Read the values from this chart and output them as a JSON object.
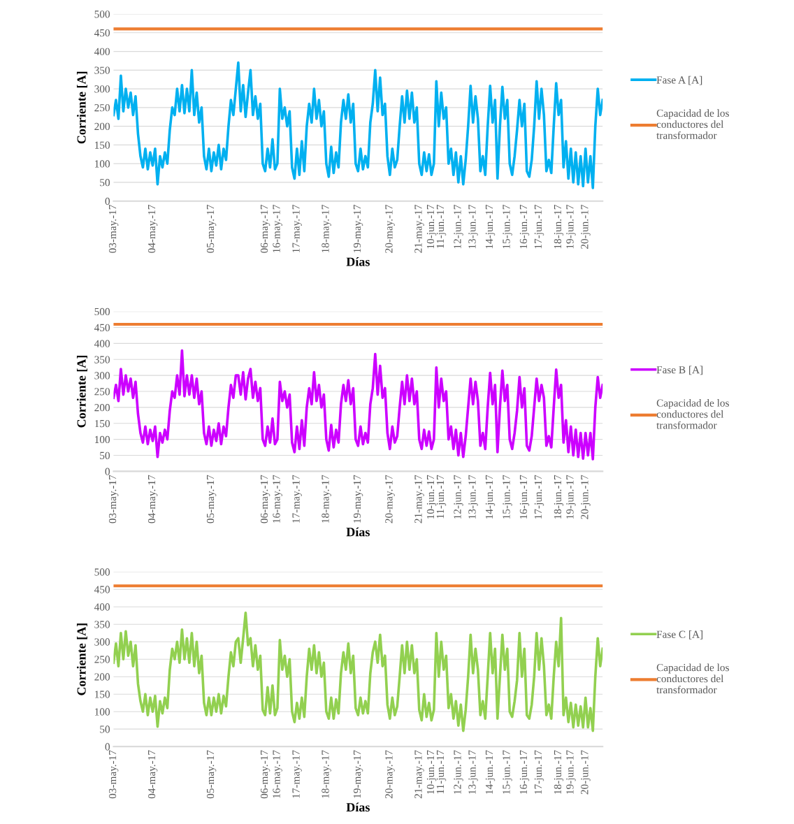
{
  "chart_data": [
    {
      "type": "line",
      "xlabel": "Días",
      "ylabel": "Corriente [A]",
      "ylim": [
        0,
        500
      ],
      "yticks": [
        0,
        50,
        100,
        150,
        200,
        250,
        300,
        350,
        400,
        450,
        500
      ],
      "categories": [
        "03-may.-17",
        null,
        null,
        null,
        null,
        null,
        null,
        null,
        null,
        null,
        null,
        null,
        null,
        null,
        null,
        null,
        "04-may.-17",
        null,
        null,
        null,
        null,
        null,
        null,
        null,
        null,
        null,
        null,
        null,
        null,
        null,
        null,
        null,
        null,
        null,
        null,
        null,
        null,
        null,
        null,
        null,
        "05-may.-17",
        null,
        null,
        null,
        null,
        null,
        null,
        null,
        null,
        null,
        null,
        null,
        null,
        null,
        null,
        null,
        null,
        null,
        null,
        null,
        null,
        null,
        "06-may.-17",
        null,
        null,
        null,
        null,
        "16-may.-17",
        null,
        null,
        null,
        null,
        null,
        null,
        null,
        "17-may.-17",
        null,
        null,
        null,
        null,
        null,
        null,
        null,
        null,
        null,
        null,
        null,
        "18-may.-17",
        null,
        null,
        null,
        null,
        null,
        null,
        null,
        null,
        null,
        null,
        null,
        null,
        "19-may.-17",
        null,
        null,
        null,
        null,
        null,
        null,
        null,
        null,
        null,
        null,
        null,
        null,
        "20-may.-17",
        null,
        null,
        null,
        null,
        null,
        null,
        null,
        null,
        null,
        null,
        null,
        "21-may.-17",
        null,
        null,
        null,
        null,
        "10-jun.-17",
        null,
        null,
        null,
        "11-jun.-17",
        null,
        null,
        null,
        null,
        null,
        null,
        "12-jun.-17",
        null,
        null,
        null,
        null,
        null,
        "13-jun.-17",
        null,
        null,
        null,
        null,
        null,
        null,
        "14-jun.-17",
        null,
        null,
        null,
        null,
        null,
        null,
        "15-jun.-17",
        null,
        null,
        null,
        null,
        null,
        null,
        "16-jun.-17",
        null,
        null,
        null,
        null,
        null,
        "17-jun.-17",
        null,
        null,
        null,
        null,
        null,
        null,
        null,
        "18-jun.-17",
        null,
        null,
        null,
        null,
        "19-jun.-17",
        null,
        null,
        null,
        null,
        null,
        "20-jun.-17",
        null,
        null,
        null,
        null,
        null,
        null,
        null
      ],
      "grid": "y",
      "legend": "right",
      "line_style": "solid",
      "ref_lines": [
        {
          "axis": "y",
          "value": 460,
          "label": "Capacidad de los conductores del transformador",
          "color": "#ed7d31"
        }
      ],
      "series": [
        {
          "name": "Fase A [A]",
          "color": "#00b0f0",
          "values": [
            230,
            270,
            220,
            335,
            240,
            300,
            250,
            290,
            230,
            280,
            180,
            120,
            90,
            140,
            85,
            130,
            95,
            140,
            45,
            120,
            90,
            130,
            100,
            190,
            250,
            230,
            300,
            240,
            310,
            235,
            300,
            240,
            350,
            230,
            290,
            210,
            250,
            120,
            85,
            140,
            80,
            130,
            95,
            150,
            85,
            140,
            110,
            200,
            270,
            230,
            300,
            370,
            240,
            310,
            225,
            290,
            350,
            230,
            280,
            220,
            260,
            100,
            80,
            140,
            90,
            165,
            85,
            100,
            300,
            220,
            250,
            200,
            240,
            90,
            60,
            140,
            70,
            160,
            80,
            200,
            260,
            210,
            300,
            220,
            270,
            200,
            240,
            100,
            65,
            145,
            75,
            130,
            90,
            210,
            270,
            220,
            285,
            210,
            260,
            100,
            80,
            140,
            85,
            120,
            90,
            210,
            260,
            350,
            240,
            330,
            230,
            260,
            120,
            70,
            140,
            90,
            110,
            200,
            280,
            210,
            295,
            220,
            290,
            210,
            250,
            100,
            70,
            130,
            80,
            125,
            70,
            100,
            320,
            200,
            290,
            220,
            250,
            100,
            140,
            70,
            130,
            50,
            120,
            45,
            110,
            200,
            308,
            210,
            280,
            220,
            80,
            120,
            70,
            200,
            308,
            210,
            270,
            60,
            200,
            305,
            220,
            270,
            100,
            70,
            120,
            190,
            270,
            200,
            260,
            80,
            65,
            110,
            200,
            320,
            220,
            300,
            230,
            80,
            110,
            75,
            200,
            315,
            230,
            270,
            90,
            160,
            60,
            140,
            50,
            130,
            45,
            120,
            40,
            140,
            50,
            120,
            35,
            200,
            300,
            230,
            270
          ]
        }
      ]
    },
    {
      "type": "line",
      "xlabel": "Días",
      "ylabel": "Corriente [A]",
      "ylim": [
        0,
        500
      ],
      "yticks": [
        0,
        50,
        100,
        150,
        200,
        250,
        300,
        350,
        400,
        450,
        500
      ],
      "categories": [
        "03-may.-17",
        null,
        null,
        null,
        null,
        null,
        null,
        null,
        null,
        null,
        null,
        null,
        null,
        null,
        null,
        null,
        "04-may.-17",
        null,
        null,
        null,
        null,
        null,
        null,
        null,
        null,
        null,
        null,
        null,
        null,
        null,
        null,
        null,
        null,
        null,
        null,
        null,
        null,
        null,
        null,
        null,
        "05-may.-17",
        null,
        null,
        null,
        null,
        null,
        null,
        null,
        null,
        null,
        null,
        null,
        null,
        null,
        null,
        null,
        null,
        null,
        null,
        null,
        null,
        null,
        "06-may.-17",
        null,
        null,
        null,
        null,
        "16-may.-17",
        null,
        null,
        null,
        null,
        null,
        null,
        null,
        "17-may.-17",
        null,
        null,
        null,
        null,
        null,
        null,
        null,
        null,
        null,
        null,
        null,
        "18-may.-17",
        null,
        null,
        null,
        null,
        null,
        null,
        null,
        null,
        null,
        null,
        null,
        null,
        "19-may.-17",
        null,
        null,
        null,
        null,
        null,
        null,
        null,
        null,
        null,
        null,
        null,
        null,
        "20-may.-17",
        null,
        null,
        null,
        null,
        null,
        null,
        null,
        null,
        null,
        null,
        null,
        "21-may.-17",
        null,
        null,
        null,
        null,
        "10-jun.-17",
        null,
        null,
        null,
        "11-jun.-17",
        null,
        null,
        null,
        null,
        null,
        null,
        "12-jun.-17",
        null,
        null,
        null,
        null,
        null,
        "13-jun.-17",
        null,
        null,
        null,
        null,
        null,
        null,
        "14-jun.-17",
        null,
        null,
        null,
        null,
        null,
        null,
        "15-jun.-17",
        null,
        null,
        null,
        null,
        null,
        null,
        "16-jun.-17",
        null,
        null,
        null,
        null,
        null,
        "17-jun.-17",
        null,
        null,
        null,
        null,
        null,
        null,
        null,
        "18-jun.-17",
        null,
        null,
        null,
        null,
        "19-jun.-17",
        null,
        null,
        null,
        null,
        null,
        "20-jun.-17",
        null,
        null,
        null,
        null,
        null,
        null,
        null
      ],
      "grid": "y",
      "legend": "right",
      "line_style": "solid",
      "ref_lines": [
        {
          "axis": "y",
          "value": 460,
          "label": "Capacidad de los conductores del transformador",
          "color": "#ed7d31"
        }
      ],
      "series": [
        {
          "name": "Fase B [A]",
          "color": "#cc00ff",
          "values": [
            230,
            270,
            220,
            320,
            240,
            300,
            250,
            290,
            230,
            280,
            180,
            120,
            90,
            140,
            85,
            130,
            95,
            140,
            45,
            120,
            90,
            130,
            100,
            190,
            250,
            230,
            300,
            240,
            378,
            235,
            300,
            240,
            300,
            230,
            290,
            210,
            250,
            120,
            85,
            140,
            80,
            130,
            95,
            150,
            85,
            140,
            110,
            200,
            270,
            230,
            300,
            300,
            240,
            310,
            225,
            290,
            320,
            230,
            280,
            220,
            260,
            100,
            80,
            140,
            90,
            165,
            85,
            100,
            280,
            220,
            250,
            200,
            240,
            90,
            60,
            140,
            70,
            160,
            80,
            200,
            260,
            210,
            310,
            220,
            270,
            200,
            240,
            100,
            65,
            145,
            75,
            130,
            90,
            210,
            270,
            220,
            285,
            210,
            260,
            100,
            80,
            140,
            85,
            120,
            90,
            210,
            260,
            367,
            240,
            330,
            230,
            260,
            120,
            70,
            140,
            90,
            110,
            200,
            280,
            210,
            300,
            220,
            290,
            210,
            250,
            100,
            70,
            130,
            80,
            125,
            70,
            100,
            325,
            200,
            290,
            220,
            250,
            100,
            140,
            70,
            130,
            50,
            120,
            45,
            110,
            200,
            290,
            210,
            280,
            220,
            80,
            120,
            70,
            200,
            308,
            210,
            270,
            60,
            200,
            315,
            220,
            270,
            100,
            70,
            120,
            190,
            295,
            200,
            260,
            80,
            65,
            110,
            200,
            290,
            220,
            270,
            230,
            80,
            110,
            75,
            200,
            318,
            230,
            270,
            90,
            160,
            60,
            140,
            50,
            130,
            45,
            120,
            40,
            120,
            50,
            120,
            38,
            200,
            295,
            230,
            270
          ]
        }
      ]
    },
    {
      "type": "line",
      "xlabel": "Días",
      "ylabel": "Corriente [A]",
      "ylim": [
        0,
        500
      ],
      "yticks": [
        0,
        50,
        100,
        150,
        200,
        250,
        300,
        350,
        400,
        450,
        500
      ],
      "categories": [
        "03-may.-17",
        null,
        null,
        null,
        null,
        null,
        null,
        null,
        null,
        null,
        null,
        null,
        null,
        null,
        null,
        null,
        "04-may.-17",
        null,
        null,
        null,
        null,
        null,
        null,
        null,
        null,
        null,
        null,
        null,
        null,
        null,
        null,
        null,
        null,
        null,
        null,
        null,
        null,
        null,
        null,
        null,
        "05-may.-17",
        null,
        null,
        null,
        null,
        null,
        null,
        null,
        null,
        null,
        null,
        null,
        null,
        null,
        null,
        null,
        null,
        null,
        null,
        null,
        null,
        null,
        "06-may.-17",
        null,
        null,
        null,
        null,
        "16-may.-17",
        null,
        null,
        null,
        null,
        null,
        null,
        null,
        "17-may.-17",
        null,
        null,
        null,
        null,
        null,
        null,
        null,
        null,
        null,
        null,
        null,
        "18-may.-17",
        null,
        null,
        null,
        null,
        null,
        null,
        null,
        null,
        null,
        null,
        null,
        null,
        "19-may.-17",
        null,
        null,
        null,
        null,
        null,
        null,
        null,
        null,
        null,
        null,
        null,
        null,
        "20-may.-17",
        null,
        null,
        null,
        null,
        null,
        null,
        null,
        null,
        null,
        null,
        null,
        "21-may.-17",
        null,
        null,
        null,
        null,
        "10-jun.-17",
        null,
        null,
        null,
        "11-jun.-17",
        null,
        null,
        null,
        null,
        null,
        null,
        "12-jun.-17",
        null,
        null,
        null,
        null,
        null,
        "13-jun.-17",
        null,
        null,
        null,
        null,
        null,
        null,
        "14-jun.-17",
        null,
        null,
        null,
        null,
        null,
        null,
        "15-jun.-17",
        null,
        null,
        null,
        null,
        null,
        null,
        "16-jun.-17",
        null,
        null,
        null,
        null,
        null,
        "17-jun.-17",
        null,
        null,
        null,
        null,
        null,
        null,
        null,
        "18-jun.-17",
        null,
        null,
        null,
        null,
        "19-jun.-17",
        null,
        null,
        null,
        null,
        null,
        "20-jun.-17",
        null,
        null,
        null,
        null,
        null,
        null,
        null
      ],
      "grid": "y",
      "legend": "right",
      "line_style": "solid",
      "ref_lines": [
        {
          "axis": "y",
          "value": 460,
          "label": "Capacidad de los conductores del transformador",
          "color": "#ed7d31"
        }
      ],
      "series": [
        {
          "name": "Fase C [A]",
          "color": "#92d050",
          "values": [
            240,
            295,
            230,
            325,
            250,
            330,
            260,
            300,
            230,
            290,
            180,
            130,
            100,
            150,
            90,
            140,
            100,
            145,
            57,
            130,
            95,
            140,
            110,
            220,
            280,
            250,
            300,
            240,
            335,
            250,
            310,
            240,
            325,
            230,
            300,
            210,
            260,
            125,
            90,
            140,
            90,
            140,
            100,
            150,
            95,
            145,
            115,
            200,
            270,
            230,
            300,
            310,
            240,
            310,
            383,
            290,
            310,
            230,
            290,
            220,
            260,
            105,
            90,
            170,
            95,
            175,
            90,
            110,
            305,
            220,
            260,
            200,
            250,
            100,
            70,
            125,
            80,
            140,
            85,
            200,
            280,
            220,
            290,
            210,
            270,
            200,
            240,
            100,
            80,
            140,
            80,
            135,
            95,
            210,
            270,
            220,
            295,
            210,
            260,
            110,
            90,
            140,
            95,
            130,
            95,
            210,
            270,
            300,
            240,
            320,
            230,
            260,
            120,
            80,
            140,
            90,
            115,
            200,
            290,
            210,
            300,
            220,
            290,
            210,
            250,
            105,
            75,
            150,
            85,
            125,
            75,
            105,
            325,
            200,
            300,
            220,
            260,
            110,
            150,
            80,
            130,
            60,
            120,
            45,
            105,
            200,
            320,
            210,
            280,
            220,
            90,
            130,
            80,
            200,
            325,
            210,
            280,
            80,
            200,
            320,
            220,
            280,
            100,
            85,
            130,
            190,
            325,
            200,
            280,
            90,
            80,
            120,
            200,
            325,
            220,
            310,
            230,
            90,
            120,
            80,
            200,
            300,
            230,
            368,
            90,
            140,
            70,
            125,
            55,
            120,
            60,
            115,
            55,
            140,
            55,
            110,
            45,
            200,
            310,
            230,
            280
          ]
        }
      ]
    }
  ]
}
